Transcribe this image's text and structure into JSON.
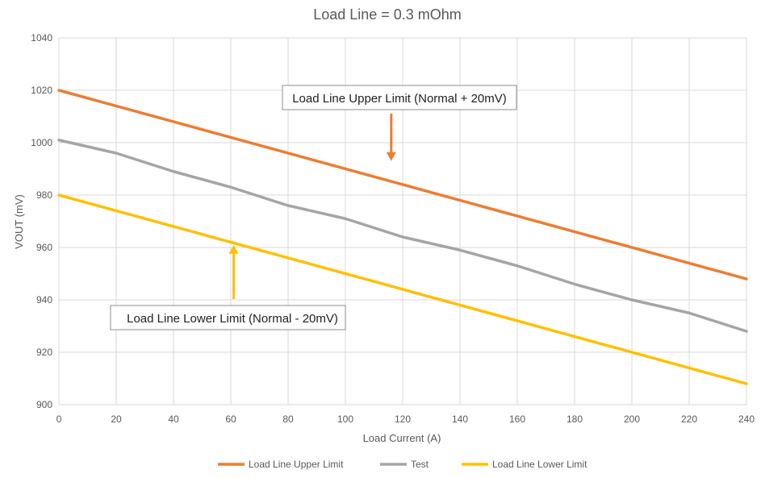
{
  "chart_data": {
    "type": "line",
    "title": "Load Line =  0.3 mOhm",
    "xlabel": "Load Current (A)",
    "ylabel": "VOUT (mV)",
    "xlim": [
      0,
      240
    ],
    "ylim": [
      900,
      1040
    ],
    "xticks": [
      0,
      20,
      40,
      60,
      80,
      100,
      120,
      140,
      160,
      180,
      200,
      220,
      240
    ],
    "yticks": [
      900,
      920,
      940,
      960,
      980,
      1000,
      1020,
      1040
    ],
    "grid": true,
    "legend_position": "bottom",
    "series": [
      {
        "name": "Load Line Upper Limit",
        "color": "#ED7D31",
        "x": [
          0,
          240
        ],
        "y": [
          1020,
          948
        ]
      },
      {
        "name": "Test",
        "color": "#A5A5A5",
        "x": [
          0,
          20,
          40,
          60,
          80,
          100,
          120,
          140,
          160,
          180,
          200,
          220,
          240
        ],
        "y": [
          1001,
          996,
          989,
          983,
          976,
          971,
          964,
          959,
          953,
          946,
          940,
          935,
          928
        ]
      },
      {
        "name": "Load Line Lower Limit",
        "color": "#FFC000",
        "x": [
          0,
          240
        ],
        "y": [
          980,
          908
        ]
      }
    ],
    "annotations": [
      {
        "text": "Load Line Upper Limit (Normal + 20mV)",
        "arrow_color": "#ED7D31",
        "arrow_x": 116,
        "arrow_y": 993
      },
      {
        "text": "Load Line Lower Limit (Normal - 20mV)",
        "arrow_color": "#FFC000",
        "arrow_x": 61,
        "arrow_y": 961
      }
    ]
  }
}
